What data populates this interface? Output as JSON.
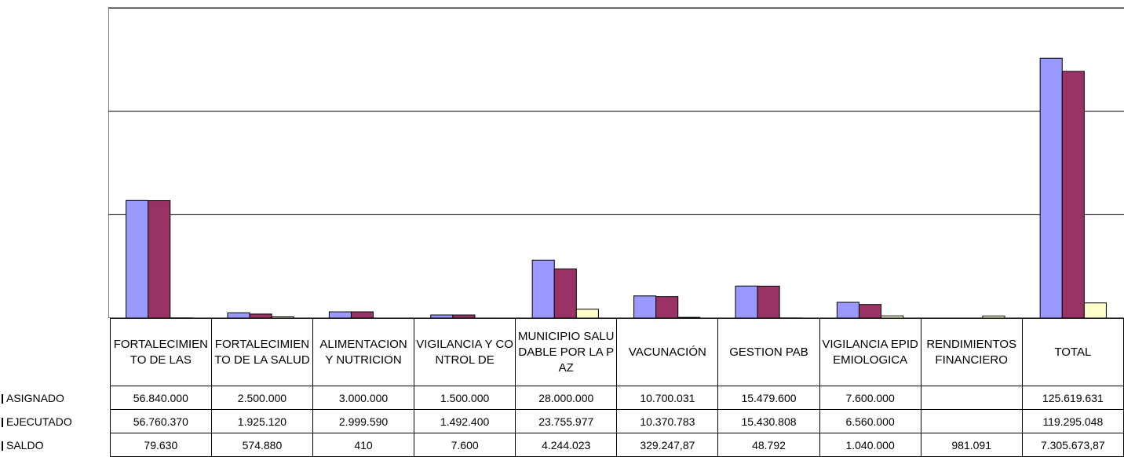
{
  "chart_data": {
    "type": "bar",
    "categories": [
      "FORTALECIMIENTO DE LAS",
      "FORTALECIMIENTO DE LA SALUD",
      "ALIMENTACION Y NUTRICION",
      "VIGILANCIA Y CONTROL DE",
      "MUNICIPIO SALUDABLE POR LA PAZ",
      "VACUNACIÓN",
      "GESTION PAB",
      "VIGILANCIA EPIDEMIOLOGICA",
      "RENDIMIENTOS FINANCIERO",
      "TOTAL"
    ],
    "series": [
      {
        "name": "ASIGNADO",
        "color": "#9999ff",
        "values": [
          56840000,
          2500000,
          3000000,
          1500000,
          28000000,
          10700031,
          15479600,
          7600000,
          null,
          125619631
        ],
        "value_labels": [
          "56.840.000",
          "2.500.000",
          "3.000.000",
          "1.500.000",
          "28.000.000",
          "10.700.031",
          "15.479.600",
          "7.600.000",
          null,
          "125.619.631"
        ]
      },
      {
        "name": "EJECUTADO",
        "color": "#993366",
        "values": [
          56760370,
          1925120,
          2999590,
          1492400,
          23755977,
          10370783,
          15430808,
          6560000,
          null,
          119295048
        ],
        "value_labels": [
          "56.760.370",
          "1.925.120",
          "2.999.590",
          "1.492.400",
          "23.755.977",
          "10.370.783",
          "15.430.808",
          "6.560.000",
          null,
          "119.295.048"
        ]
      },
      {
        "name": "SALDO",
        "color": "#ffffcc",
        "values": [
          79630,
          574880,
          410,
          7600,
          4244023,
          329247.87,
          48792,
          1040000,
          981091,
          7305673.87
        ],
        "value_labels": [
          "79.630",
          "574.880",
          "410",
          "7.600",
          "4.244.023",
          "329.247,87",
          "48.792",
          "1.040.000",
          "981.091",
          "7.305.673,87"
        ]
      }
    ],
    "ylim": [
      0,
      150000000
    ],
    "yticks": [
      0,
      50000000,
      100000000,
      150000000
    ],
    "grid": true
  }
}
